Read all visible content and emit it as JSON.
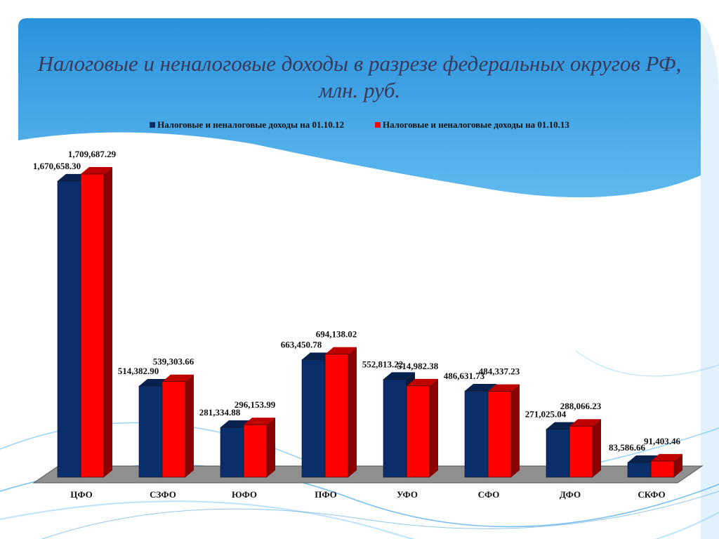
{
  "slide": {
    "title": "Налоговые и неналоговые доходы в разрезе федеральных округов РФ, млн. руб."
  },
  "colors": {
    "series_2012": "#0a2d6b",
    "series_2013": "#ff0000",
    "floor": "#8c8c8c",
    "sky": "#2a9ee6"
  },
  "chart_data": {
    "type": "bar",
    "title": "",
    "xlabel": "",
    "ylabel": "",
    "categories": [
      "ЦФО",
      "СЗФО",
      "ЮФО",
      "ПФО",
      "УФО",
      "СФО",
      "ДФО",
      "СКФО"
    ],
    "series": [
      {
        "name": "Налоговые и неналоговые доходы на 01.10.12",
        "values": [
          1670658.3,
          514382.9,
          281334.88,
          663450.78,
          552813.22,
          486631.73,
          271025.04,
          83586.66
        ],
        "labels": [
          "1,670,658.30",
          "514,382.90",
          "281,334.88",
          "663,450.78",
          "552,813.22",
          "486,631.73",
          "271,025.04",
          "83,586.66"
        ],
        "color": "#0a2d6b"
      },
      {
        "name": "Налоговые и неналоговые доходы на 01.10.13",
        "values": [
          1709687.29,
          539303.66,
          296153.99,
          694138.02,
          514982.38,
          484337.23,
          288066.23,
          91403.46
        ],
        "labels": [
          "1,709,687.29",
          "539,303.66",
          "296,153.99",
          "694,138.02",
          "514,982.38",
          "484,337.23",
          "288,066.23",
          "91,403.46"
        ],
        "color": "#ff0000"
      }
    ],
    "ylim": [
      0,
      1709687.29
    ],
    "grid": false,
    "legend_position": "top",
    "style": "3d-clustered-column"
  }
}
